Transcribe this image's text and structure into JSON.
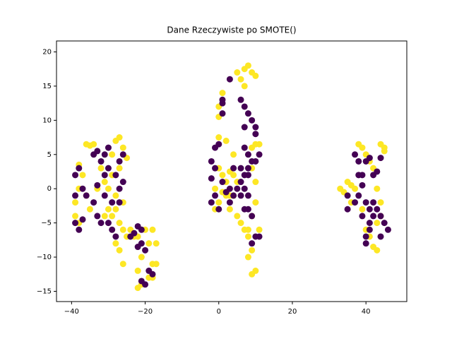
{
  "chart_data": {
    "type": "scatter",
    "title": "Dane Rzeczywiste po SMOTE()",
    "xlim": [
      -44.1,
      51.1
    ],
    "ylim": [
      -16.5,
      21.6
    ],
    "xticks": [
      {
        "value": -40,
        "label": "−40"
      },
      {
        "value": -20,
        "label": "−20"
      },
      0,
      20,
      40
    ],
    "yticks": [
      {
        "value": -15,
        "label": "−15"
      },
      {
        "value": -10,
        "label": "−10"
      },
      {
        "value": -5,
        "label": "−5"
      },
      0,
      5,
      10,
      15,
      20
    ],
    "series": [
      {
        "color": "#fde725",
        "x": [
          -39,
          -39,
          -38,
          -38,
          -37,
          -38,
          -36,
          -35,
          -34,
          -36,
          -35,
          -33,
          -31,
          -30,
          -29,
          -28,
          -27,
          -26,
          -25,
          -28,
          -27,
          -26,
          -24,
          -23,
          -28,
          -27,
          -26,
          -25,
          -29,
          -30,
          -32,
          -31,
          -28,
          -26,
          -27,
          -29,
          -22,
          -21,
          -22,
          -21,
          -22,
          -19,
          -18,
          -17,
          -18,
          -19,
          -17,
          -20,
          -18,
          -1,
          0,
          -1,
          0,
          1,
          2,
          3,
          4,
          2,
          3,
          5,
          6,
          7,
          8,
          9,
          10,
          10,
          9,
          10,
          11,
          9,
          0,
          0,
          1,
          0,
          2,
          4,
          6,
          7,
          8,
          9,
          10,
          5,
          7,
          8,
          9,
          10,
          9,
          8,
          11,
          3,
          4,
          5,
          1,
          33,
          35,
          36,
          37,
          38,
          39,
          40,
          41,
          42,
          44,
          45,
          45,
          43,
          44,
          43,
          41,
          42,
          43,
          40,
          39,
          36,
          34,
          44
        ],
        "values": [
          -2,
          -4,
          -5,
          0,
          2,
          3.5,
          6.5,
          6.3,
          6.5,
          -1,
          -3,
          0,
          1,
          -3,
          -4,
          -3,
          -5,
          -6,
          -7,
          -8,
          -9,
          -11,
          -6,
          -7,
          7,
          7.5,
          6,
          4.5,
          5,
          0,
          3,
          -4,
          -1,
          -2,
          3,
          2,
          -7,
          -10,
          -12,
          -14,
          -14.5,
          -13,
          -11,
          -11,
          -13,
          -8,
          -8,
          -6,
          -6,
          0,
          -2,
          -3,
          3,
          2,
          1,
          2.5,
          2,
          -1,
          -3,
          -4,
          -5,
          -6,
          -6,
          -4,
          -2,
          1,
          3,
          6.5,
          6.5,
          6,
          12,
          10.5,
          14,
          7.5,
          7,
          5,
          16,
          17.5,
          18,
          17,
          16.5,
          17,
          15,
          -7,
          -9,
          -12,
          -12.5,
          -10,
          -6,
          -1,
          -1,
          1,
          -0.5,
          0,
          1,
          0.5,
          0,
          6.5,
          6,
          5,
          4,
          3,
          6.5,
          5.5,
          6,
          0,
          -2,
          -5,
          -7,
          -8.5,
          -9,
          -6,
          -3,
          -2,
          -0.5,
          -4
        ]
      },
      {
        "color": "#440154",
        "x": [
          -39,
          -38,
          -37,
          -39,
          -39,
          -38,
          -37,
          -34,
          -33,
          -32,
          -31,
          -33,
          -34,
          -33,
          -32,
          -30,
          -29,
          -28,
          -31,
          -30,
          -27,
          -26,
          -27,
          -29,
          -28,
          -27,
          -26,
          -30,
          -31,
          -36,
          -24,
          -23,
          -22,
          -21,
          -21,
          -20,
          -22,
          -21,
          -20,
          -19,
          -18,
          -2,
          -1,
          -2,
          -1,
          -2,
          0,
          1,
          2,
          3,
          4,
          3,
          -1,
          0,
          1,
          1,
          1,
          3,
          6,
          7,
          8,
          9,
          10,
          10,
          7,
          8,
          8,
          6,
          7,
          6,
          7,
          8,
          8,
          7,
          8,
          10,
          11,
          10,
          11,
          9,
          9,
          7,
          9,
          6,
          5,
          4,
          37,
          38,
          38,
          40,
          39,
          39,
          38,
          37,
          35,
          40,
          41,
          42,
          39,
          41,
          42,
          43,
          44,
          45,
          46,
          44,
          41,
          40,
          40,
          42,
          43,
          44,
          41,
          35
        ],
        "values": [
          -5,
          -6,
          -4.5,
          -1,
          2,
          3,
          0,
          5,
          5.5,
          4,
          2,
          0.5,
          -2,
          -4,
          -5,
          -5,
          -6,
          -7,
          -1,
          3,
          0,
          1,
          -2,
          -2,
          2,
          4,
          5,
          6,
          5,
          -1,
          -7,
          -6.5,
          -5.5,
          -6,
          -8,
          -9,
          -8.5,
          -13.5,
          -14,
          -12,
          -12.5,
          4,
          3,
          1.5,
          -1,
          -2,
          -3,
          1,
          -0.5,
          0,
          -1,
          -2,
          6,
          6.5,
          11,
          13,
          12.5,
          16,
          13,
          12,
          11,
          10,
          9,
          8,
          9,
          5,
          3,
          3,
          2,
          1,
          0,
          -1,
          -3,
          -3,
          2,
          4,
          5,
          -7,
          -7,
          -8,
          -4,
          6,
          4,
          -1,
          0,
          3,
          5,
          4,
          2,
          4,
          2,
          0.5,
          -1,
          -2,
          -3,
          -2,
          -3,
          -2,
          -4,
          -5,
          -4,
          -3,
          -4,
          -5,
          -6,
          -7,
          -6,
          -7,
          -8,
          2,
          2.5,
          4.5,
          4.5,
          -1
        ]
      }
    ]
  }
}
